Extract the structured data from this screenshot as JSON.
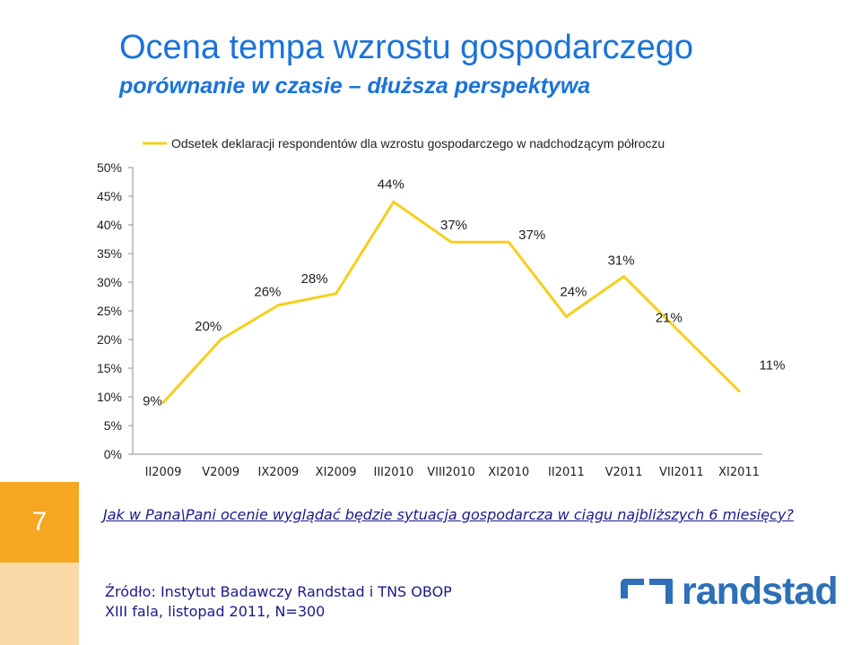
{
  "header": {
    "title": "Ocena tempa wzrostu gospodarczego",
    "subtitle": "porównanie w czasie – dłuższa perspektywa"
  },
  "chart_data": {
    "type": "line",
    "title": "",
    "xlabel": "",
    "ylabel": "",
    "ylim": [
      0,
      50
    ],
    "yticks": [
      "0%",
      "5%",
      "10%",
      "15%",
      "20%",
      "25%",
      "30%",
      "35%",
      "40%",
      "45%",
      "50%"
    ],
    "grid": false,
    "legend_position": "top",
    "categories": [
      "II2009",
      "V2009",
      "IX2009",
      "XI2009",
      "III2010",
      "VIII2010",
      "XI2010",
      "II2011",
      "V2011",
      "VII2011",
      "XI2011"
    ],
    "series": [
      {
        "name": "Odsetek deklaracji respondentów dla wzrostu gospodarczego w nadchodzącym półroczu",
        "values": [
          9,
          20,
          26,
          28,
          44,
          37,
          37,
          24,
          31,
          21,
          11
        ],
        "labels": [
          "9%",
          "20%",
          "26%",
          "28%",
          "44%",
          "37%",
          "37%",
          "24%",
          "31%",
          "21%",
          "11%"
        ],
        "color": "#f5cf1e"
      }
    ]
  },
  "slide_number": "7",
  "question": "Jak w Pana\\Pani ocenie wyglądać będzie sytuacja gospodarcza w ciągu najbliższych 6 miesięcy?",
  "source": {
    "line1": "Źródło: Instytut Badawczy Randstad i TNS OBOP",
    "line2": "XIII fala, listopad 2011, N=300"
  },
  "logo": {
    "text": "randstad",
    "color": "#2e6fb7"
  },
  "colors": {
    "title": "#1a73d9",
    "accent_orange": "#f5a623",
    "accent_light": "#fbd9a6",
    "line": "#f5cf1e"
  }
}
